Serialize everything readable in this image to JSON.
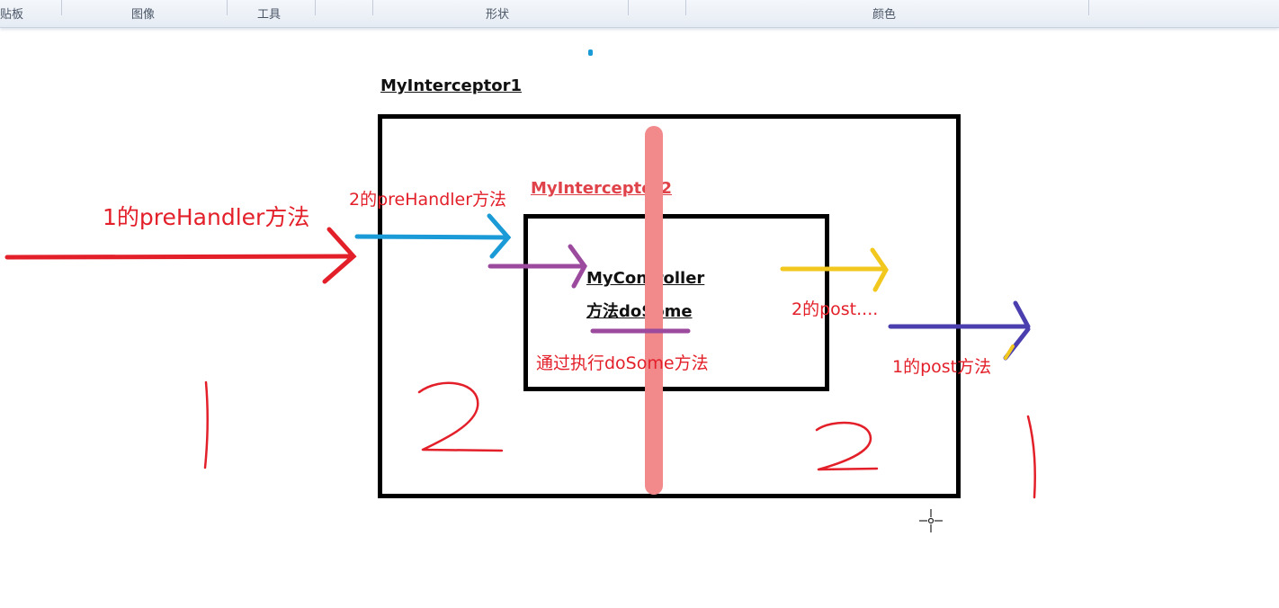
{
  "ribbon": {
    "groups": [
      {
        "label": "贴板"
      },
      {
        "label": "图像"
      },
      {
        "label": "工具"
      },
      {
        "label": "形状"
      },
      {
        "label": "颜色"
      }
    ]
  },
  "diagram": {
    "outer_title": "MyInterceptor1",
    "inner_title": "MyInterceptor2",
    "controller_line1": "MyController",
    "controller_line2": "方法doSome",
    "label_pre1": "1的preHandler方法",
    "label_pre2": "2的preHandler方法",
    "label_post2": "2的post....",
    "label_post1": "1的post方法",
    "label_exec": "通过执行doSome方法"
  },
  "colors": {
    "red": "#e3202a",
    "blue": "#1a9ad6",
    "purple": "#9b4a9e",
    "yellow": "#f2c81e",
    "indigo": "#4b3fb0",
    "highlight": "#f28a8c"
  }
}
